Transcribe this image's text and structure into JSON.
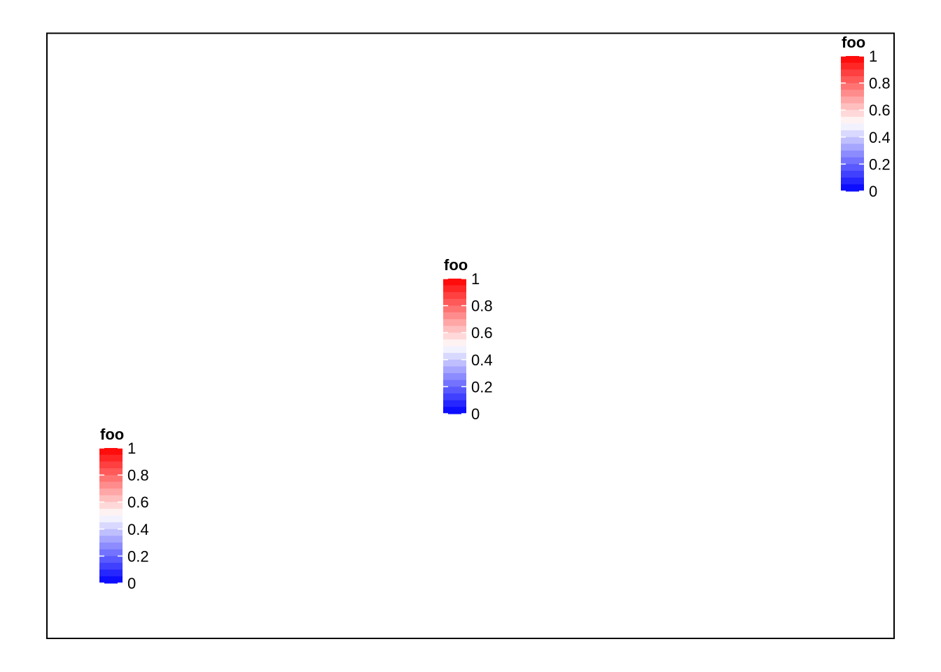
{
  "chart_data": {
    "type": "colorbar-legends",
    "panel": {
      "background": "#ffffff",
      "border_color": "#000000",
      "grid": false
    },
    "legends": [
      {
        "position": "bottom-left",
        "title": "foo",
        "scale": {
          "low_color": "#0000ff",
          "mid_color": "#ffffff",
          "high_color": "#ff0000",
          "range": [
            0,
            1
          ],
          "midpoint": 0.5,
          "breaks": [
            0,
            0.2,
            0.4,
            0.6,
            0.8,
            1
          ],
          "tick_labels": [
            "0",
            "0.2",
            "0.4",
            "0.6",
            "0.8",
            "1"
          ]
        }
      },
      {
        "position": "center",
        "title": "foo",
        "scale": {
          "low_color": "#0000ff",
          "mid_color": "#ffffff",
          "high_color": "#ff0000",
          "range": [
            0,
            1
          ],
          "midpoint": 0.5,
          "breaks": [
            0,
            0.2,
            0.4,
            0.6,
            0.8,
            1
          ],
          "tick_labels": [
            "0",
            "0.2",
            "0.4",
            "0.6",
            "0.8",
            "1"
          ]
        }
      },
      {
        "position": "top-right",
        "title": "foo",
        "scale": {
          "low_color": "#0000ff",
          "mid_color": "#ffffff",
          "high_color": "#ff0000",
          "range": [
            0,
            1
          ],
          "midpoint": 0.5,
          "breaks": [
            0,
            0.2,
            0.4,
            0.6,
            0.8,
            1
          ],
          "tick_labels": [
            "0",
            "0.2",
            "0.4",
            "0.6",
            "0.8",
            "1"
          ]
        }
      }
    ]
  }
}
